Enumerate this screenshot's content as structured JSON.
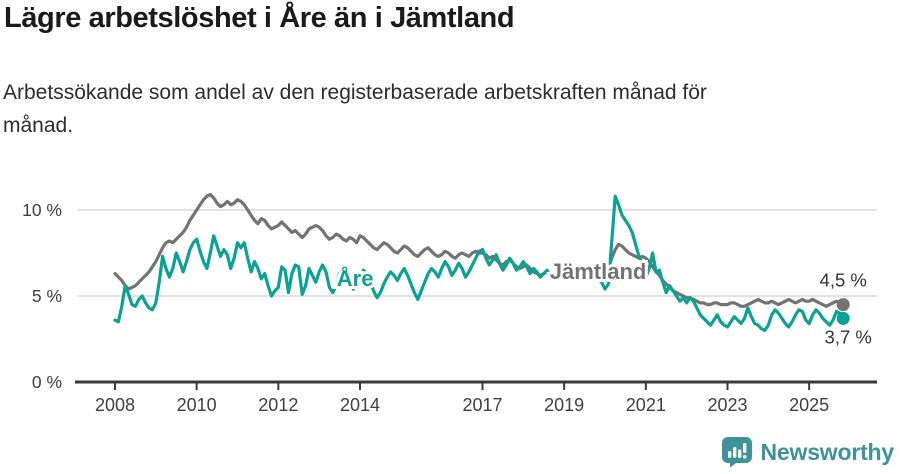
{
  "header": {
    "title": "Lägre arbetslöshet i Åre än i Jämtland",
    "subtitle_line1": "Arbetssökande som andel av den registerbaserade arbetskraften månad för",
    "subtitle_line2": "månad."
  },
  "branding": {
    "logo_text": "Newsworthy",
    "color": "#3e929a"
  },
  "chart_data": {
    "type": "line",
    "title": "Lägre arbetslöshet i Åre än i Jämtland",
    "subtitle": "Arbetssökande som andel av den registerbaserade arbetskraften månad för månad.",
    "unit": "%",
    "frequency": "monthly",
    "x_start": "2008-01",
    "x_end": "2025-11",
    "ylim": [
      0,
      12
    ],
    "grid": "horizontal",
    "legend_position": "inline-labels",
    "y_ticks": [
      {
        "value": 0,
        "label": "0 %"
      },
      {
        "value": 5,
        "label": "5 %"
      },
      {
        "value": 10,
        "label": "10 %"
      }
    ],
    "x_ticks": [
      {
        "year": 2008,
        "label": "2008"
      },
      {
        "year": 2010,
        "label": "2010"
      },
      {
        "year": 2012,
        "label": "2012"
      },
      {
        "year": 2014,
        "label": "2014"
      },
      {
        "year": 2017,
        "label": "2017"
      },
      {
        "year": 2019,
        "label": "2019"
      },
      {
        "year": 2021,
        "label": "2021"
      },
      {
        "year": 2023,
        "label": "2023"
      },
      {
        "year": 2025,
        "label": "2025"
      }
    ],
    "series": [
      {
        "name": "Jämtland",
        "color": "#737373",
        "end_value": 4.5,
        "end_label": "4,5 %",
        "end_label_offset": [
          0,
          -18
        ],
        "label_pos": {
          "year": 2019.83,
          "value": 6.45
        },
        "values": [
          6.3,
          6.1,
          5.9,
          5.6,
          5.4,
          5.5,
          5.6,
          5.8,
          6.0,
          6.2,
          6.4,
          6.7,
          7.0,
          7.4,
          7.8,
          8.1,
          8.2,
          8.1,
          8.3,
          8.5,
          8.7,
          9.0,
          9.4,
          9.7,
          10.0,
          10.3,
          10.6,
          10.8,
          10.9,
          10.7,
          10.4,
          10.2,
          10.3,
          10.5,
          10.3,
          10.4,
          10.6,
          10.5,
          10.3,
          10.0,
          9.7,
          9.4,
          9.2,
          9.5,
          9.4,
          9.1,
          8.9,
          9.0,
          9.1,
          9.3,
          9.1,
          8.9,
          8.7,
          8.8,
          8.6,
          8.4,
          8.6,
          8.9,
          9.0,
          9.1,
          9.0,
          8.8,
          8.5,
          8.3,
          8.4,
          8.6,
          8.5,
          8.3,
          8.2,
          8.4,
          8.3,
          8.1,
          8.5,
          8.4,
          8.2,
          8.0,
          7.8,
          7.7,
          7.9,
          8.1,
          8.0,
          7.8,
          7.6,
          7.5,
          7.7,
          7.9,
          7.8,
          7.6,
          7.4,
          7.3,
          7.5,
          7.7,
          7.8,
          7.6,
          7.4,
          7.3,
          7.4,
          7.6,
          7.5,
          7.3,
          7.2,
          7.4,
          7.5,
          7.4,
          7.3,
          7.5,
          7.6,
          7.5,
          7.5,
          7.4,
          7.2,
          7.3,
          7.1,
          6.9,
          6.8,
          7.0,
          7.1,
          6.9,
          6.7,
          6.6,
          6.7,
          6.8,
          6.6,
          6.4,
          6.3,
          6.2,
          6.3,
          6.4,
          6.3,
          6.2,
          6.3,
          6.4,
          6.5,
          6.4,
          6.3,
          6.4,
          6.3,
          6.2,
          6.3,
          6.4,
          6.5,
          6.4,
          6.5,
          6.6,
          6.6,
          6.7,
          7.2,
          7.7,
          8.0,
          7.9,
          7.7,
          7.5,
          7.4,
          7.3,
          7.2,
          7.3,
          7.2,
          7.0,
          6.7,
          6.4,
          6.2,
          5.9,
          5.7,
          5.5,
          5.3,
          5.2,
          5.1,
          5.0,
          4.9,
          4.9,
          4.8,
          4.7,
          4.6,
          4.6,
          4.5,
          4.5,
          4.6,
          4.6,
          4.5,
          4.5,
          4.5,
          4.6,
          4.6,
          4.5,
          4.4,
          4.4,
          4.5,
          4.6,
          4.7,
          4.8,
          4.7,
          4.6,
          4.6,
          4.7,
          4.6,
          4.5,
          4.6,
          4.7,
          4.8,
          4.7,
          4.6,
          4.7,
          4.8,
          4.7,
          4.7,
          4.8,
          4.7,
          4.6,
          4.5,
          4.4,
          4.5,
          4.6,
          4.7,
          4.6,
          4.5
        ]
      },
      {
        "name": "Åre",
        "color": "#09a295",
        "end_value": 3.7,
        "end_label": "3,7 %",
        "end_label_offset": [
          5,
          25
        ],
        "label_pos": {
          "year": 2013.88,
          "value": 6.05
        },
        "values": [
          3.6,
          3.5,
          4.4,
          5.6,
          5.1,
          4.5,
          4.4,
          4.8,
          5.0,
          4.6,
          4.3,
          4.2,
          4.6,
          5.8,
          7.3,
          6.6,
          6.1,
          6.6,
          7.5,
          7.0,
          6.4,
          7.0,
          7.7,
          8.1,
          8.3,
          7.6,
          7.0,
          6.6,
          7.5,
          8.5,
          7.9,
          7.3,
          7.7,
          7.4,
          6.6,
          7.2,
          8.1,
          7.8,
          8.1,
          7.2,
          6.4,
          7.0,
          6.6,
          6.0,
          6.3,
          5.6,
          5.0,
          5.3,
          5.5,
          6.7,
          6.5,
          5.2,
          6.3,
          6.8,
          6.7,
          5.1,
          5.6,
          6.6,
          6.2,
          5.8,
          6.4,
          6.8,
          6.4,
          5.5,
          5.2,
          5.6,
          6.3,
          6.7,
          6.3,
          5.8,
          5.4,
          5.7,
          6.1,
          6.5,
          6.3,
          5.8,
          5.3,
          4.9,
          5.2,
          5.7,
          6.1,
          6.4,
          6.2,
          5.9,
          6.3,
          6.6,
          6.2,
          5.7,
          5.2,
          4.8,
          5.3,
          5.8,
          6.3,
          6.6,
          6.4,
          6.1,
          6.6,
          7.0,
          6.7,
          6.2,
          6.5,
          6.9,
          6.6,
          6.1,
          6.4,
          6.8,
          7.2,
          7.6,
          7.7,
          7.2,
          6.8,
          7.1,
          7.4,
          6.9,
          6.5,
          6.8,
          7.2,
          6.9,
          6.5,
          6.7,
          7.0,
          6.7,
          6.3,
          6.6,
          6.4,
          6.1,
          6.3,
          6.5,
          6.2,
          6.0,
          6.2,
          6.4,
          6.3,
          6.1,
          6.3,
          6.2,
          6.0,
          6.2,
          6.3,
          6.1,
          6.0,
          6.2,
          6.0,
          5.8,
          5.4,
          5.7,
          8.2,
          10.8,
          10.3,
          9.7,
          9.4,
          9.1,
          8.7,
          8.0,
          7.3,
          6.9,
          6.1,
          6.6,
          7.5,
          6.4,
          6.5,
          5.8,
          5.2,
          5.6,
          5.3,
          5.0,
          4.7,
          4.9,
          4.6,
          4.9,
          4.7,
          4.3,
          3.9,
          3.7,
          3.5,
          3.3,
          3.6,
          3.9,
          3.5,
          3.3,
          3.2,
          3.5,
          3.8,
          3.6,
          3.4,
          3.7,
          4.3,
          3.8,
          3.4,
          3.3,
          3.1,
          3.0,
          3.3,
          3.9,
          4.2,
          4.0,
          3.7,
          3.4,
          3.2,
          3.5,
          3.9,
          4.2,
          4.1,
          3.6,
          3.4,
          3.9,
          4.2,
          4.0,
          3.7,
          3.5,
          3.3,
          3.6,
          4.1,
          4.0,
          3.7
        ]
      }
    ]
  }
}
